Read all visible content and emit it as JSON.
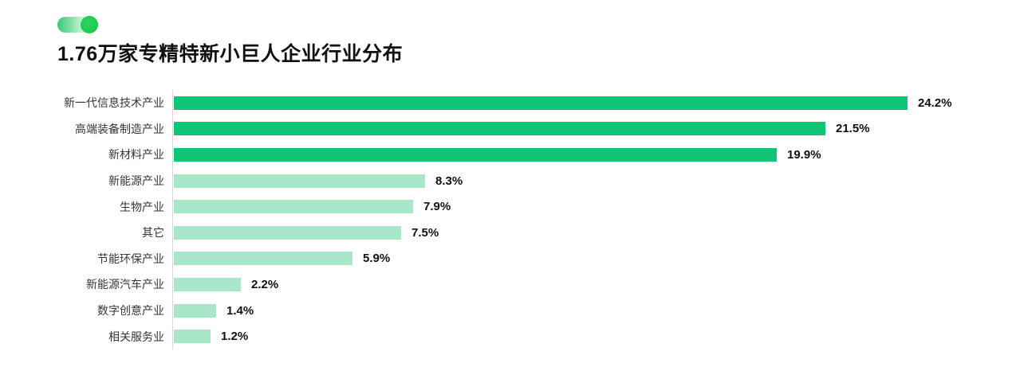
{
  "header": {
    "title": "1.76万家专精特新小巨人企业行业分布",
    "decoration": "green-pill-toggle"
  },
  "chart_data": {
    "type": "bar",
    "orientation": "horizontal",
    "title": "1.76万家专精特新小巨人企业行业分布",
    "categories": [
      "新一代信息技术产业",
      "高端装备制造产业",
      "新材料产业",
      "新能源产业",
      "生物产业",
      "其它",
      "节能环保产业",
      "新能源汽车产业",
      "数字创意产业",
      "相关服务业"
    ],
    "values": [
      24.2,
      21.5,
      19.9,
      8.3,
      7.9,
      7.5,
      5.9,
      2.2,
      1.4,
      1.2
    ],
    "value_labels": [
      "24.2%",
      "21.5%",
      "19.9%",
      "8.3%",
      "7.9%",
      "7.5%",
      "5.9%",
      "2.2%",
      "1.4%",
      "1.2%"
    ],
    "xlabel": "",
    "ylabel": "",
    "xlim": [
      0,
      25
    ],
    "grid": false,
    "legend": false,
    "bar_colors": [
      "#12c476",
      "#12c476",
      "#12c476",
      "#a8e8c9",
      "#a8e8c9",
      "#a8e8c9",
      "#a8e8c9",
      "#a8e8c9",
      "#a8e8c9",
      "#a8e8c9"
    ],
    "colors": {
      "primary_bar": "#12c476",
      "secondary_bar": "#a8e8c9",
      "axis_line": "#d9d9d9",
      "label_text": "#353535",
      "value_text": "#111111",
      "deco_knob": "#23ce56"
    }
  }
}
